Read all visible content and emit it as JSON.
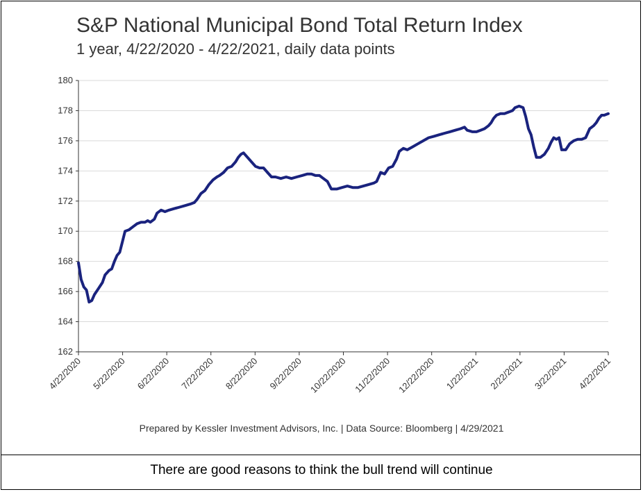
{
  "chart_data": {
    "type": "line",
    "title": "S&P National Municipal Bond Total Return Index",
    "subtitle": "1 year, 4/22/2020 - 4/22/2021, daily data points",
    "xlabel": "",
    "ylabel": "",
    "ylim": [
      162,
      180
    ],
    "yticks": [
      "162",
      "164",
      "166",
      "168",
      "170",
      "172",
      "174",
      "176",
      "178",
      "180"
    ],
    "xtick_labels": [
      "4/22/2020",
      "5/22/2020",
      "6/22/2020",
      "7/22/2020",
      "8/22/2020",
      "9/22/2020",
      "10/22/2020",
      "11/22/2020",
      "12/22/2020",
      "1/22/2021",
      "2/22/2021",
      "3/22/2021",
      "4/22/2021"
    ],
    "grid": true,
    "series": [
      {
        "name": "S&P National Municipal Bond Total Return Index",
        "color": "#1a237e",
        "points": [
          [
            0,
            167.9
          ],
          [
            2,
            166.8
          ],
          [
            4,
            166.3
          ],
          [
            6,
            166.1
          ],
          [
            8,
            165.3
          ],
          [
            10,
            165.4
          ],
          [
            12,
            165.8
          ],
          [
            15,
            166.2
          ],
          [
            18,
            166.6
          ],
          [
            20,
            167.1
          ],
          [
            23,
            167.4
          ],
          [
            25,
            167.5
          ],
          [
            27,
            168.0
          ],
          [
            29,
            168.4
          ],
          [
            31,
            168.6
          ],
          [
            33,
            169.3
          ],
          [
            35,
            170.0
          ],
          [
            38,
            170.1
          ],
          [
            41,
            170.3
          ],
          [
            44,
            170.5
          ],
          [
            47,
            170.6
          ],
          [
            50,
            170.6
          ],
          [
            52,
            170.7
          ],
          [
            54,
            170.6
          ],
          [
            57,
            170.8
          ],
          [
            59,
            171.2
          ],
          [
            62,
            171.4
          ],
          [
            65,
            171.3
          ],
          [
            68,
            171.4
          ],
          [
            72,
            171.5
          ],
          [
            76,
            171.6
          ],
          [
            80,
            171.7
          ],
          [
            84,
            171.8
          ],
          [
            87,
            171.9
          ],
          [
            89,
            172.1
          ],
          [
            92,
            172.5
          ],
          [
            95,
            172.7
          ],
          [
            98,
            173.1
          ],
          [
            101,
            173.4
          ],
          [
            104,
            173.6
          ],
          [
            106,
            173.7
          ],
          [
            109,
            173.9
          ],
          [
            112,
            174.2
          ],
          [
            115,
            174.3
          ],
          [
            118,
            174.6
          ],
          [
            120,
            174.9
          ],
          [
            122,
            175.1
          ],
          [
            124,
            175.2
          ],
          [
            127,
            174.9
          ],
          [
            130,
            174.6
          ],
          [
            133,
            174.3
          ],
          [
            136,
            174.2
          ],
          [
            139,
            174.2
          ],
          [
            142,
            173.9
          ],
          [
            145,
            173.6
          ],
          [
            148,
            173.6
          ],
          [
            152,
            173.5
          ],
          [
            156,
            173.6
          ],
          [
            160,
            173.5
          ],
          [
            164,
            173.6
          ],
          [
            168,
            173.7
          ],
          [
            172,
            173.8
          ],
          [
            175,
            173.8
          ],
          [
            178,
            173.7
          ],
          [
            181,
            173.7
          ],
          [
            184,
            173.5
          ],
          [
            187,
            173.3
          ],
          [
            190,
            172.8
          ],
          [
            194,
            172.8
          ],
          [
            198,
            172.9
          ],
          [
            202,
            173.0
          ],
          [
            206,
            172.9
          ],
          [
            210,
            172.9
          ],
          [
            214,
            173.0
          ],
          [
            218,
            173.1
          ],
          [
            222,
            173.2
          ],
          [
            224,
            173.3
          ],
          [
            227,
            173.9
          ],
          [
            230,
            173.8
          ],
          [
            233,
            174.2
          ],
          [
            236,
            174.3
          ],
          [
            239,
            174.8
          ],
          [
            241,
            175.3
          ],
          [
            244,
            175.5
          ],
          [
            247,
            175.4
          ],
          [
            251,
            175.6
          ],
          [
            255,
            175.8
          ],
          [
            259,
            176.0
          ],
          [
            263,
            176.2
          ],
          [
            267,
            176.3
          ],
          [
            271,
            176.4
          ],
          [
            275,
            176.5
          ],
          [
            279,
            176.6
          ],
          [
            283,
            176.7
          ],
          [
            287,
            176.8
          ],
          [
            290,
            176.9
          ],
          [
            292,
            176.7
          ],
          [
            296,
            176.6
          ],
          [
            299,
            176.6
          ],
          [
            302,
            176.7
          ],
          [
            305,
            176.8
          ],
          [
            308,
            177.0
          ],
          [
            310,
            177.2
          ],
          [
            312,
            177.5
          ],
          [
            314,
            177.7
          ],
          [
            317,
            177.8
          ],
          [
            320,
            177.8
          ],
          [
            323,
            177.9
          ],
          [
            326,
            178.0
          ],
          [
            328,
            178.2
          ],
          [
            331,
            178.3
          ],
          [
            334,
            178.2
          ],
          [
            336,
            177.6
          ],
          [
            338,
            176.8
          ],
          [
            340,
            176.4
          ],
          [
            342,
            175.6
          ],
          [
            344,
            174.9
          ],
          [
            347,
            174.9
          ],
          [
            350,
            175.1
          ],
          [
            353,
            175.5
          ],
          [
            355,
            175.9
          ],
          [
            357,
            176.2
          ],
          [
            359,
            176.1
          ],
          [
            361,
            176.2
          ],
          [
            363,
            175.4
          ],
          [
            366,
            175.4
          ],
          [
            369,
            175.8
          ],
          [
            372,
            176.0
          ],
          [
            375,
            176.1
          ],
          [
            378,
            176.1
          ],
          [
            381,
            176.2
          ],
          [
            384,
            176.8
          ],
          [
            387,
            177.0
          ],
          [
            389,
            177.2
          ],
          [
            391,
            177.5
          ],
          [
            393,
            177.7
          ],
          [
            395,
            177.7
          ],
          [
            398,
            177.8
          ]
        ]
      }
    ]
  },
  "footer": {
    "prepared_by": "Prepared by Kessler Investment Advisors, Inc. | Data Source: Bloomberg | 4/29/2021"
  },
  "caption": {
    "text": "There are good reasons to think the bull trend will continue"
  }
}
